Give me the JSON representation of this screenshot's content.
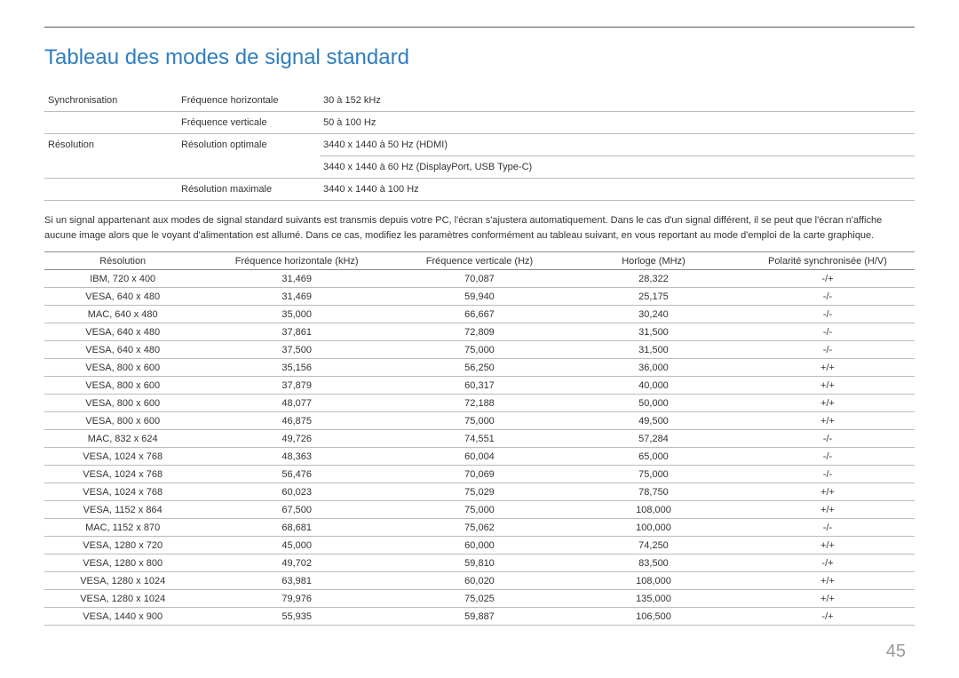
{
  "title": "Tableau des modes de signal standard",
  "colors": {
    "title": "#2f7ec0",
    "text": "#333333",
    "border": "#bbbbbb",
    "page_num": "#999999"
  },
  "spec": {
    "sync_label": "Synchronisation",
    "hfreq_label": "Fréquence horizontale",
    "hfreq_value": "30 à 152 kHz",
    "vfreq_label": "Fréquence verticale",
    "vfreq_value": "50 à 100 Hz",
    "res_label": "Résolution",
    "res_opt_label": "Résolution optimale",
    "res_opt_value1": "3440 x 1440 à 50 Hz (HDMI)",
    "res_opt_value2": "3440 x 1440 à 60 Hz (DisplayPort, USB Type-C)",
    "res_max_label": "Résolution maximale",
    "res_max_value": "3440 x 1440 à 100 Hz"
  },
  "description": "Si un signal appartenant aux modes de signal standard suivants est transmis depuis votre PC, l'écran s'ajustera automatiquement. Dans le cas d'un signal différent, il se peut que l'écran n'affiche aucune image alors que le voyant d'alimentation est allumé. Dans ce cas, modifiez les paramètres conformément au tableau suivant, en vous reportant au mode d'emploi de la carte graphique.",
  "modes": {
    "headers": {
      "resolution": "Résolution",
      "hfreq": "Fréquence horizontale (kHz)",
      "vfreq": "Fréquence verticale (Hz)",
      "clock": "Horloge (MHz)",
      "polarity": "Polarité synchronisée (H/V)"
    },
    "rows": [
      {
        "res": "IBM, 720 x 400",
        "h": "31,469",
        "v": "70,087",
        "c": "28,322",
        "p": "-/+"
      },
      {
        "res": "VESA, 640 x 480",
        "h": "31,469",
        "v": "59,940",
        "c": "25,175",
        "p": "-/-"
      },
      {
        "res": "MAC, 640 x 480",
        "h": "35,000",
        "v": "66,667",
        "c": "30,240",
        "p": "-/-"
      },
      {
        "res": "VESA, 640 x 480",
        "h": "37,861",
        "v": "72,809",
        "c": "31,500",
        "p": "-/-"
      },
      {
        "res": "VESA, 640 x 480",
        "h": "37,500",
        "v": "75,000",
        "c": "31,500",
        "p": "-/-"
      },
      {
        "res": "VESA, 800 x 600",
        "h": "35,156",
        "v": "56,250",
        "c": "36,000",
        "p": "+/+"
      },
      {
        "res": "VESA, 800 x 600",
        "h": "37,879",
        "v": "60,317",
        "c": "40,000",
        "p": "+/+"
      },
      {
        "res": "VESA, 800 x 600",
        "h": "48,077",
        "v": "72,188",
        "c": "50,000",
        "p": "+/+"
      },
      {
        "res": "VESA, 800 x 600",
        "h": "46,875",
        "v": "75,000",
        "c": "49,500",
        "p": "+/+"
      },
      {
        "res": "MAC, 832 x 624",
        "h": "49,726",
        "v": "74,551",
        "c": "57,284",
        "p": "-/-"
      },
      {
        "res": "VESA, 1024 x 768",
        "h": "48,363",
        "v": "60,004",
        "c": "65,000",
        "p": "-/-"
      },
      {
        "res": "VESA, 1024 x 768",
        "h": "56,476",
        "v": "70,069",
        "c": "75,000",
        "p": "-/-"
      },
      {
        "res": "VESA, 1024 x 768",
        "h": "60,023",
        "v": "75,029",
        "c": "78,750",
        "p": "+/+"
      },
      {
        "res": "VESA, 1152 x 864",
        "h": "67,500",
        "v": "75,000",
        "c": "108,000",
        "p": "+/+"
      },
      {
        "res": "MAC, 1152 x 870",
        "h": "68,681",
        "v": "75,062",
        "c": "100,000",
        "p": "-/-"
      },
      {
        "res": "VESA, 1280 x 720",
        "h": "45,000",
        "v": "60,000",
        "c": "74,250",
        "p": "+/+"
      },
      {
        "res": "VESA, 1280 x 800",
        "h": "49,702",
        "v": "59,810",
        "c": "83,500",
        "p": "-/+"
      },
      {
        "res": "VESA, 1280 x 1024",
        "h": "63,981",
        "v": "60,020",
        "c": "108,000",
        "p": "+/+"
      },
      {
        "res": "VESA, 1280 x 1024",
        "h": "79,976",
        "v": "75,025",
        "c": "135,000",
        "p": "+/+"
      },
      {
        "res": "VESA, 1440 x 900",
        "h": "55,935",
        "v": "59,887",
        "c": "106,500",
        "p": "-/+"
      }
    ]
  },
  "page_number": "45"
}
